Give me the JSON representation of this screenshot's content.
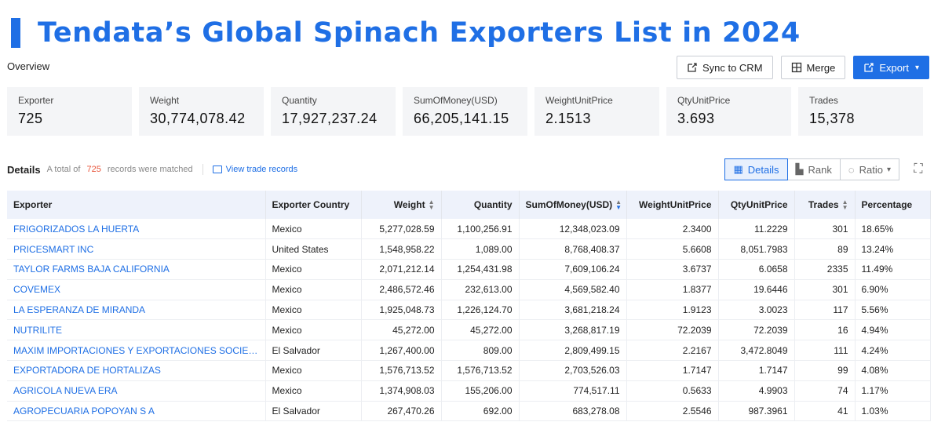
{
  "title": "Tendata’s Global Spinach Exporters List in 2024",
  "overview_label": "Overview",
  "actions": {
    "sync": "Sync to CRM",
    "merge": "Merge",
    "export": "Export"
  },
  "stats": [
    {
      "label": "Exporter",
      "value": "725"
    },
    {
      "label": "Weight",
      "value": "30,774,078.42"
    },
    {
      "label": "Quantity",
      "value": "17,927,237.24"
    },
    {
      "label": "SumOfMoney(USD)",
      "value": "66,205,141.15"
    },
    {
      "label": "WeightUnitPrice",
      "value": "2.1513"
    },
    {
      "label": "QtyUnitPrice",
      "value": "3.693"
    },
    {
      "label": "Trades",
      "value": "15,378"
    }
  ],
  "details": {
    "label": "Details",
    "total_prefix": "A total of",
    "count": "725",
    "total_suffix": "records were matched",
    "view_trade": "View trade records",
    "views": {
      "details": "Details",
      "rank": "Rank",
      "ratio": "Ratio"
    }
  },
  "table": {
    "headers": [
      "Exporter",
      "Exporter Country",
      "Weight",
      "Quantity",
      "SumOfMoney(USD)",
      "WeightUnitPrice",
      "QtyUnitPrice",
      "Trades",
      "Percentage"
    ],
    "rows": [
      [
        "FRIGORIZADOS LA HUERTA",
        "Mexico",
        "5,277,028.59",
        "1,100,256.91",
        "12,348,023.09",
        "2.3400",
        "11.2229",
        "301",
        "18.65%"
      ],
      [
        "PRICESMART INC",
        "United States",
        "1,548,958.22",
        "1,089.00",
        "8,768,408.37",
        "5.6608",
        "8,051.7983",
        "89",
        "13.24%"
      ],
      [
        "TAYLOR FARMS BAJA CALIFORNIA",
        "Mexico",
        "2,071,212.14",
        "1,254,431.98",
        "7,609,106.24",
        "3.6737",
        "6.0658",
        "2335",
        "11.49%"
      ],
      [
        "COVEMEX",
        "Mexico",
        "2,486,572.46",
        "232,613.00",
        "4,569,582.40",
        "1.8377",
        "19.6446",
        "301",
        "6.90%"
      ],
      [
        "LA ESPERANZA DE MIRANDA",
        "Mexico",
        "1,925,048.73",
        "1,226,124.70",
        "3,681,218.24",
        "1.9123",
        "3.0023",
        "117",
        "5.56%"
      ],
      [
        "NUTRILITE",
        "Mexico",
        "45,272.00",
        "45,272.00",
        "3,268,817.19",
        "72.2039",
        "72.2039",
        "16",
        "4.94%"
      ],
      [
        "MAXIM IMPORTACIONES Y EXPORTACIONES SOCIEDAD ANONIMA",
        "El Salvador",
        "1,267,400.00",
        "809.00",
        "2,809,499.15",
        "2.2167",
        "3,472.8049",
        "111",
        "4.24%"
      ],
      [
        "EXPORTADORA DE HORTALIZAS",
        "Mexico",
        "1,576,713.52",
        "1,576,713.52",
        "2,703,526.03",
        "1.7147",
        "1.7147",
        "99",
        "4.08%"
      ],
      [
        "AGRICOLA NUEVA ERA",
        "Mexico",
        "1,374,908.03",
        "155,206.00",
        "774,517.11",
        "0.5633",
        "4.9903",
        "74",
        "1.17%"
      ],
      [
        "AGROPECUARIA POPOYAN S A",
        "El Salvador",
        "267,470.26",
        "692.00",
        "683,278.08",
        "2.5546",
        "987.3961",
        "41",
        "1.03%"
      ]
    ]
  }
}
